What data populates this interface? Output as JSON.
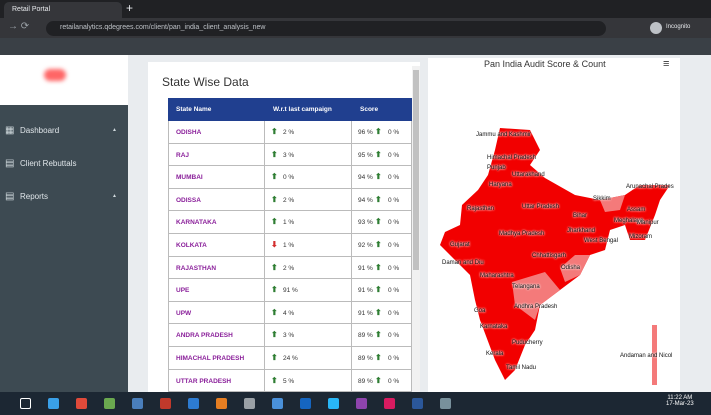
{
  "browser": {
    "tab_title": "Retail Portal",
    "url": "retailanalytics.qdegrees.com/client/pan_india_client_analysis_new",
    "profile": "Incognito"
  },
  "sidebar": {
    "items": [
      "Dashboard",
      "Client Rebuttals",
      "Reports"
    ]
  },
  "table": {
    "title": "State Wise Data",
    "headers": [
      "State Name",
      "W.r.t last campaign",
      "Score"
    ],
    "rows": [
      {
        "state": "ODISHA",
        "change": "2 %",
        "change_dir": "up",
        "score": "96 %",
        "score_change": "0 %"
      },
      {
        "state": "RAJ",
        "change": "3 %",
        "change_dir": "up",
        "score": "95 %",
        "score_change": "0 %"
      },
      {
        "state": "MUMBAI",
        "change": "0 %",
        "change_dir": "up",
        "score": "94 %",
        "score_change": "0 %"
      },
      {
        "state": "ODISSA",
        "change": "2 %",
        "change_dir": "up",
        "score": "94 %",
        "score_change": "0 %"
      },
      {
        "state": "KARNATAKA",
        "change": "1 %",
        "change_dir": "up",
        "score": "93 %",
        "score_change": "0 %"
      },
      {
        "state": "KOLKATA",
        "change": "1 %",
        "change_dir": "down",
        "score": "92 %",
        "score_change": "0 %"
      },
      {
        "state": "RAJASTHAN",
        "change": "2 %",
        "change_dir": "up",
        "score": "91 %",
        "score_change": "0 %"
      },
      {
        "state": "UPE",
        "change": "91 %",
        "change_dir": "up",
        "score": "91 %",
        "score_change": "0 %"
      },
      {
        "state": "UPW",
        "change": "4 %",
        "change_dir": "up",
        "score": "91 %",
        "score_change": "0 %"
      },
      {
        "state": "ANDRA PRADESH",
        "change": "3 %",
        "change_dir": "up",
        "score": "89 %",
        "score_change": "0 %"
      },
      {
        "state": "HIMACHAL PRADESH",
        "change": "24 %",
        "change_dir": "up",
        "score": "89 %",
        "score_change": "0 %"
      },
      {
        "state": "UTTAR PRADESH",
        "change": "5 %",
        "change_dir": "up",
        "score": "89 %",
        "score_change": "0 %"
      }
    ]
  },
  "map": {
    "title": "Pan India Audit Score & Count",
    "labels": [
      "Jammu and Kashmir",
      "Himachal Pradesh",
      "Punjab",
      "Uttarakhand",
      "Haryana",
      "Arunachal Prades",
      "Sikkim",
      "Rajasthan",
      "Uttar Pradesh",
      "Bihar",
      "Assam",
      "Meghalaya",
      "Manipur",
      "Madhya Pradesh",
      "Jharkhand",
      "Mizoram",
      "West Bengal",
      "Gujarat",
      "Chhattisgarh",
      "Daman and Diu",
      "Odisha",
      "Maharashtra",
      "Telangana",
      "Andhra Pradesh",
      "Goa",
      "Karnataka",
      "Puducherry",
      "Kerala",
      "Tamil Nadu",
      "Andaman and Nicol"
    ]
  },
  "taskbar": {
    "time": "11:22 AM",
    "date": "17-Mar-23"
  }
}
